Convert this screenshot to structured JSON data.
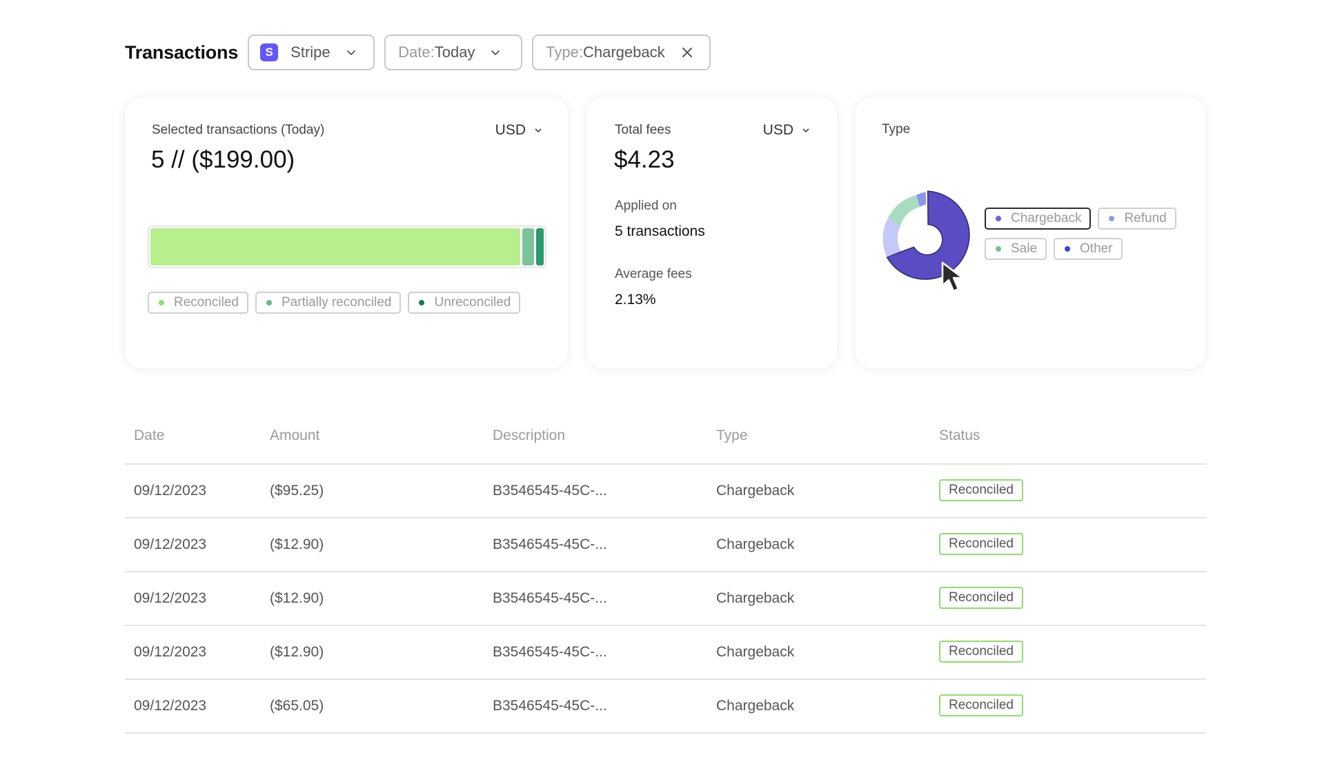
{
  "header": {
    "title": "Transactions",
    "filters": {
      "source": {
        "icon": "stripe-logo-icon",
        "badge_letter": "S",
        "label": "Stripe"
      },
      "date": {
        "key": "Date: ",
        "value": "Today"
      },
      "type": {
        "key": "Type: ",
        "value": "Chargeback"
      }
    }
  },
  "cards": {
    "selected": {
      "label": "Selected transactions (Today)",
      "currency": "USD",
      "value": "5 // ($199.00)",
      "bar": {
        "segments": [
          {
            "name": "Reconciled",
            "fraction": 0.94,
            "color": "#b8ef8d"
          },
          {
            "name": "Partially reconciled",
            "fraction": 0.03,
            "color": "#7cc39b"
          },
          {
            "name": "Unreconciled",
            "fraction": 0.02,
            "color": "#2b9a6d"
          }
        ]
      },
      "legend": [
        {
          "label": "Reconciled",
          "color": "#8fe164"
        },
        {
          "label": "Partially reconciled",
          "color": "#5bbd85"
        },
        {
          "label": "Unreconciled",
          "color": "#137a4f"
        }
      ]
    },
    "fees": {
      "label": "Total fees",
      "currency": "USD",
      "value": "$4.23",
      "applied_label": "Applied on",
      "applied_value": "5 transactions",
      "avg_label": "Average fees",
      "avg_value": "2.13%"
    },
    "type": {
      "label": "Type",
      "legend": [
        {
          "label": "Chargeback",
          "color": "#6e5ee0",
          "active": true
        },
        {
          "label": "Refund",
          "color": "#8f9bf2",
          "active": false
        },
        {
          "label": "Sale",
          "color": "#6fc48f",
          "active": false
        },
        {
          "label": "Other",
          "color": "#3546d9",
          "active": false
        }
      ],
      "donut_colors": {
        "chargeback": "#5a4cc3",
        "refund": "#c3c9f9",
        "sale": "#a8dcc0",
        "other": "#8c95ee"
      }
    }
  },
  "chart_data": {
    "type": "pie",
    "categories": [
      "Chargeback",
      "Refund",
      "Sale",
      "Other"
    ],
    "values": [
      70,
      15,
      10,
      5
    ]
  },
  "table": {
    "columns": [
      "Date",
      "Amount",
      "Description",
      "Type",
      "Status"
    ],
    "rows": [
      {
        "date": "09/12/2023",
        "amount": "($95.25)",
        "description": "B3546545-45C-...",
        "type": "Chargeback",
        "status": "Reconciled"
      },
      {
        "date": "09/12/2023",
        "amount": "($12.90)",
        "description": "B3546545-45C-...",
        "type": "Chargeback",
        "status": "Reconciled"
      },
      {
        "date": "09/12/2023",
        "amount": "($12.90)",
        "description": "B3546545-45C-...",
        "type": "Chargeback",
        "status": "Reconciled"
      },
      {
        "date": "09/12/2023",
        "amount": "($12.90)",
        "description": "B3546545-45C-...",
        "type": "Chargeback",
        "status": "Reconciled"
      },
      {
        "date": "09/12/2023",
        "amount": "($65.05)",
        "description": "B3546545-45C-...",
        "type": "Chargeback",
        "status": "Reconciled"
      }
    ]
  },
  "cursor": {
    "icon": "mouse-pointer-icon"
  }
}
